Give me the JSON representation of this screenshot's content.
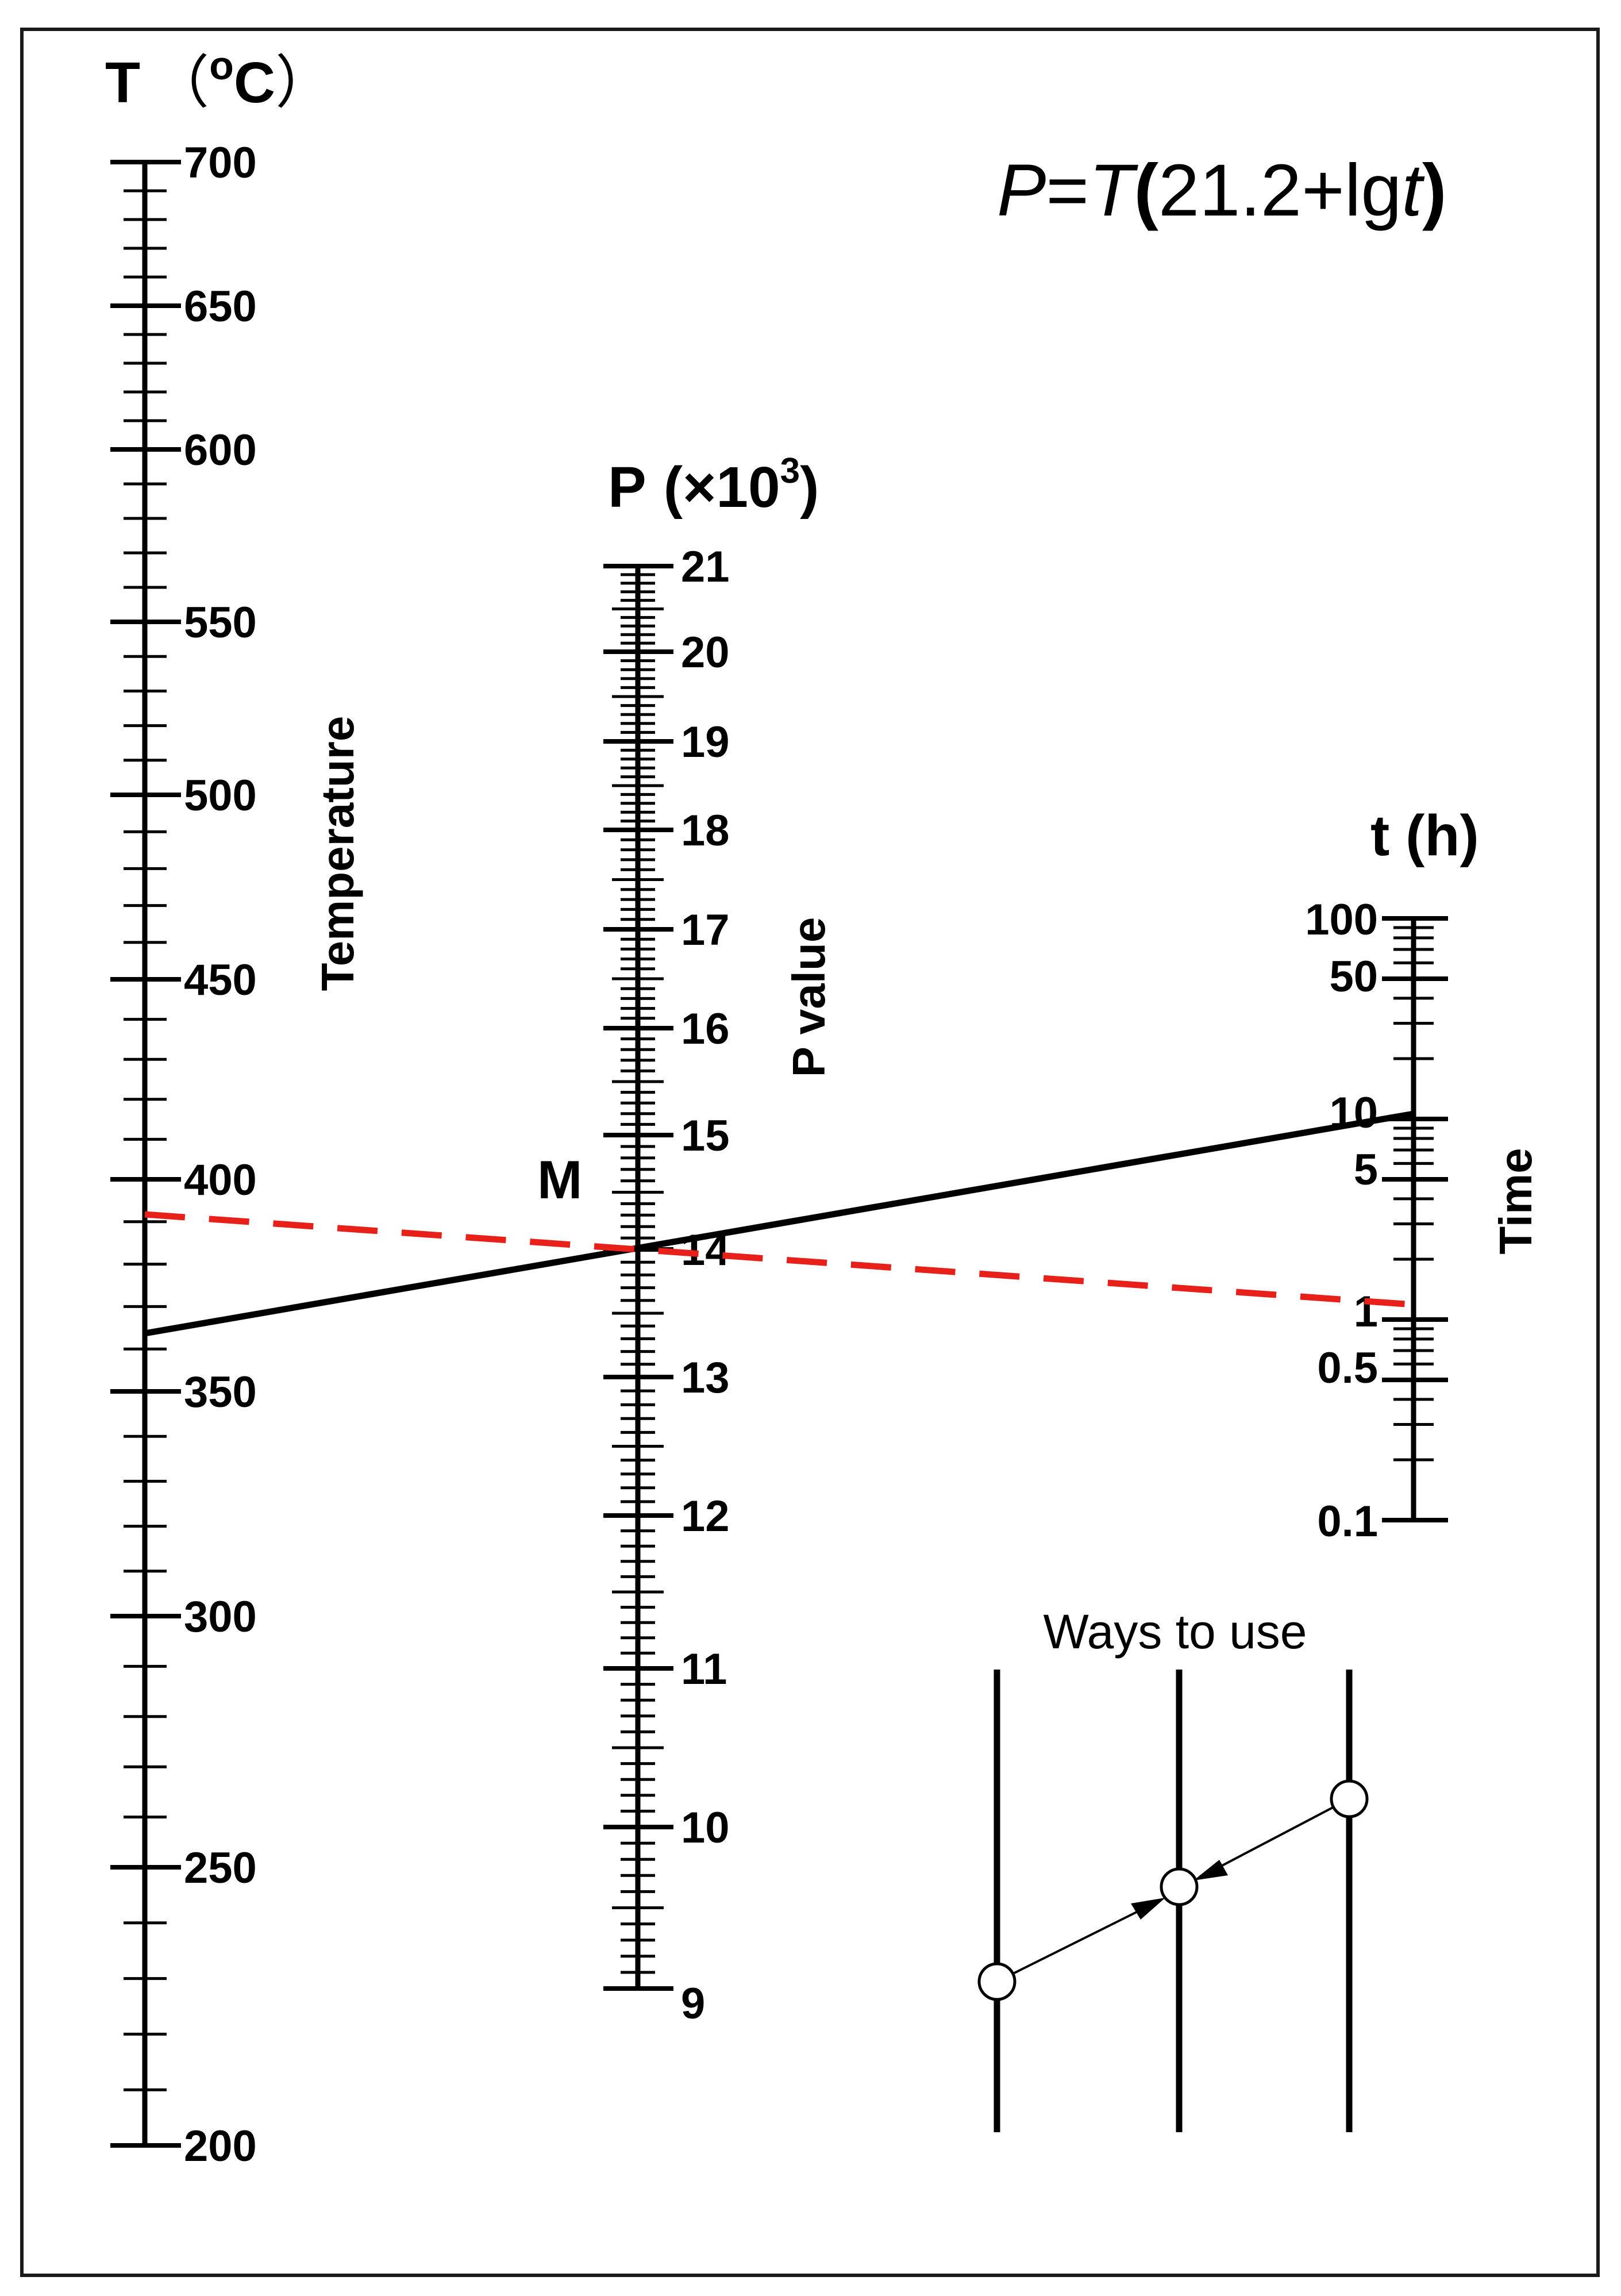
{
  "formula": {
    "lhs": "P",
    "eq": "=",
    "T": "T",
    "paren_open": "(",
    "mid": "21.2+lg",
    "t": "t",
    "paren_close": ")"
  },
  "scales": {
    "temperature": {
      "title_symbol": "T",
      "title_unit_open": "（",
      "title_degree": "o",
      "title_unit": "C",
      "title_unit_close": "）",
      "side_label": "Temperature",
      "range": [
        200,
        700
      ],
      "major_ticks": [
        "700",
        "650",
        "600",
        "550",
        "500",
        "450",
        "400",
        "350",
        "300",
        "250",
        "200"
      ]
    },
    "p_value": {
      "title_symbol": "P",
      "title_unit_open": "(",
      "title_times": "×10",
      "title_exp": "3",
      "title_unit_close": ")",
      "side_label": "P value",
      "range": [
        9,
        21
      ],
      "major_ticks": [
        "21",
        "20",
        "19",
        "18",
        "17",
        "16",
        "15",
        "14",
        "13",
        "12",
        "11",
        "10",
        "9"
      ],
      "point_label": "M"
    },
    "time": {
      "title": "t (h)",
      "side_label": "Time",
      "range": [
        0.1,
        100
      ],
      "scale": "log",
      "major_ticks": [
        "100",
        "50",
        "10",
        "5",
        "1",
        "0.5",
        "0.1"
      ]
    }
  },
  "example_lines": [
    {
      "style": "solid",
      "color": "#000000",
      "T": 363,
      "P": 14.0,
      "t": 10
    },
    {
      "style": "dashed",
      "color": "#e8201a",
      "T": 392,
      "P": 14.0,
      "t": 1
    }
  ],
  "legend": {
    "title": "Ways to use"
  }
}
